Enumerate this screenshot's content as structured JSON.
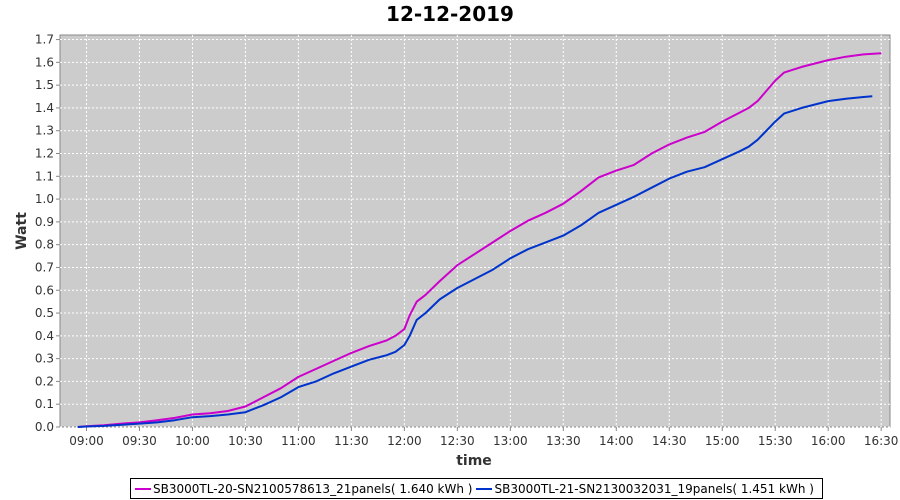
{
  "chart_data": {
    "type": "line",
    "title": "12-12-2019",
    "xlabel": "time",
    "ylabel": "Watt",
    "ylim": [
      0,
      1.72
    ],
    "xlim_minutes": [
      525,
      995
    ],
    "x_ticks": [
      "09:00",
      "09:30",
      "10:00",
      "10:30",
      "11:00",
      "11:30",
      "12:00",
      "12:30",
      "13:00",
      "13:30",
      "14:00",
      "14:30",
      "15:00",
      "15:30",
      "16:00",
      "16:30"
    ],
    "y_ticks": [
      "0.0",
      "0.1",
      "0.2",
      "0.3",
      "0.4",
      "0.5",
      "0.6",
      "0.7",
      "0.8",
      "0.9",
      "1.0",
      "1.1",
      "1.2",
      "1.3",
      "1.4",
      "1.5",
      "1.6",
      "1.7"
    ],
    "grid": true,
    "legend_position": "bottom",
    "series": [
      {
        "name": "SB3000TL-20-SN2100578613_21panels( 1.640 kWh )",
        "color": "#cc00cc",
        "points": [
          [
            "08:55",
            0.0
          ],
          [
            "09:00",
            0.003
          ],
          [
            "09:10",
            0.008
          ],
          [
            "09:20",
            0.015
          ],
          [
            "09:30",
            0.02
          ],
          [
            "09:40",
            0.03
          ],
          [
            "09:50",
            0.04
          ],
          [
            "10:00",
            0.055
          ],
          [
            "10:10",
            0.06
          ],
          [
            "10:20",
            0.07
          ],
          [
            "10:30",
            0.09
          ],
          [
            "10:40",
            0.13
          ],
          [
            "10:50",
            0.17
          ],
          [
            "11:00",
            0.22
          ],
          [
            "11:10",
            0.255
          ],
          [
            "11:20",
            0.29
          ],
          [
            "11:30",
            0.325
          ],
          [
            "11:40",
            0.355
          ],
          [
            "11:50",
            0.38
          ],
          [
            "11:55",
            0.4
          ],
          [
            "12:00",
            0.43
          ],
          [
            "12:03",
            0.49
          ],
          [
            "12:07",
            0.55
          ],
          [
            "12:12",
            0.58
          ],
          [
            "12:20",
            0.64
          ],
          [
            "12:30",
            0.71
          ],
          [
            "12:40",
            0.76
          ],
          [
            "12:50",
            0.81
          ],
          [
            "13:00",
            0.86
          ],
          [
            "13:10",
            0.905
          ],
          [
            "13:20",
            0.94
          ],
          [
            "13:30",
            0.98
          ],
          [
            "13:40",
            1.035
          ],
          [
            "13:50",
            1.095
          ],
          [
            "14:00",
            1.125
          ],
          [
            "14:10",
            1.15
          ],
          [
            "14:20",
            1.2
          ],
          [
            "14:30",
            1.24
          ],
          [
            "14:40",
            1.27
          ],
          [
            "14:50",
            1.295
          ],
          [
            "15:00",
            1.34
          ],
          [
            "15:10",
            1.38
          ],
          [
            "15:15",
            1.4
          ],
          [
            "15:20",
            1.43
          ],
          [
            "15:30",
            1.52
          ],
          [
            "15:35",
            1.555
          ],
          [
            "15:45",
            1.58
          ],
          [
            "16:00",
            1.61
          ],
          [
            "16:10",
            1.625
          ],
          [
            "16:20",
            1.635
          ],
          [
            "16:30",
            1.64
          ]
        ]
      },
      {
        "name": "SB3000TL-21-SN2130032031_19panels( 1.451 kWh )",
        "color": "#0033cc",
        "points": [
          [
            "08:55",
            0.0
          ],
          [
            "09:00",
            0.002
          ],
          [
            "09:10",
            0.005
          ],
          [
            "09:20",
            0.01
          ],
          [
            "09:30",
            0.015
          ],
          [
            "09:40",
            0.02
          ],
          [
            "09:50",
            0.03
          ],
          [
            "10:00",
            0.043
          ],
          [
            "10:10",
            0.048
          ],
          [
            "10:20",
            0.055
          ],
          [
            "10:30",
            0.065
          ],
          [
            "10:40",
            0.095
          ],
          [
            "10:50",
            0.13
          ],
          [
            "11:00",
            0.175
          ],
          [
            "11:10",
            0.2
          ],
          [
            "11:20",
            0.235
          ],
          [
            "11:30",
            0.265
          ],
          [
            "11:40",
            0.295
          ],
          [
            "11:50",
            0.315
          ],
          [
            "11:55",
            0.33
          ],
          [
            "12:00",
            0.36
          ],
          [
            "12:03",
            0.4
          ],
          [
            "12:07",
            0.47
          ],
          [
            "12:12",
            0.5
          ],
          [
            "12:20",
            0.56
          ],
          [
            "12:30",
            0.61
          ],
          [
            "12:40",
            0.65
          ],
          [
            "12:50",
            0.69
          ],
          [
            "13:00",
            0.74
          ],
          [
            "13:10",
            0.78
          ],
          [
            "13:20",
            0.81
          ],
          [
            "13:30",
            0.84
          ],
          [
            "13:40",
            0.885
          ],
          [
            "13:50",
            0.94
          ],
          [
            "14:00",
            0.975
          ],
          [
            "14:10",
            1.01
          ],
          [
            "14:20",
            1.05
          ],
          [
            "14:30",
            1.09
          ],
          [
            "14:40",
            1.12
          ],
          [
            "14:50",
            1.14
          ],
          [
            "15:00",
            1.175
          ],
          [
            "15:10",
            1.21
          ],
          [
            "15:15",
            1.23
          ],
          [
            "15:20",
            1.26
          ],
          [
            "15:30",
            1.34
          ],
          [
            "15:35",
            1.375
          ],
          [
            "15:45",
            1.4
          ],
          [
            "16:00",
            1.43
          ],
          [
            "16:10",
            1.44
          ],
          [
            "16:20",
            1.448
          ],
          [
            "16:25",
            1.451
          ]
        ]
      }
    ]
  }
}
